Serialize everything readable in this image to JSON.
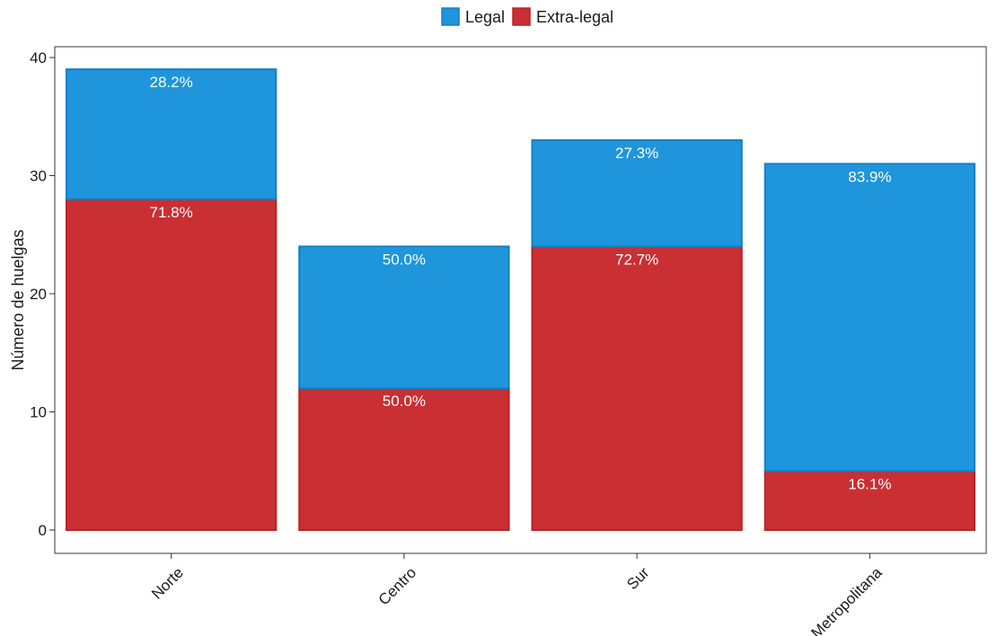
{
  "chart_data": {
    "type": "bar",
    "stacked": true,
    "categories": [
      "Norte",
      "Centro",
      "Sur",
      "Metropolitana"
    ],
    "series": [
      {
        "name": "Extra-legal",
        "color": "#c92f33",
        "border": "#b82227",
        "values": [
          28,
          12,
          24,
          5
        ],
        "labels": [
          "71.8%",
          "50.0%",
          "72.7%",
          "16.1%"
        ]
      },
      {
        "name": "Legal",
        "color": "#1f95db",
        "border": "#1480c4",
        "values": [
          11,
          12,
          9,
          26
        ],
        "labels": [
          "28.2%",
          "50.0%",
          "27.3%",
          "83.9%"
        ]
      }
    ],
    "legend_order": [
      "Legal",
      "Extra-legal"
    ],
    "legend_position": "top",
    "xlabel": "",
    "ylabel": "Número de huelgas",
    "ylim": [
      0,
      40
    ],
    "yticks": [
      0,
      10,
      20,
      30,
      40
    ],
    "grid": false,
    "x_tick_rotation": -45
  }
}
